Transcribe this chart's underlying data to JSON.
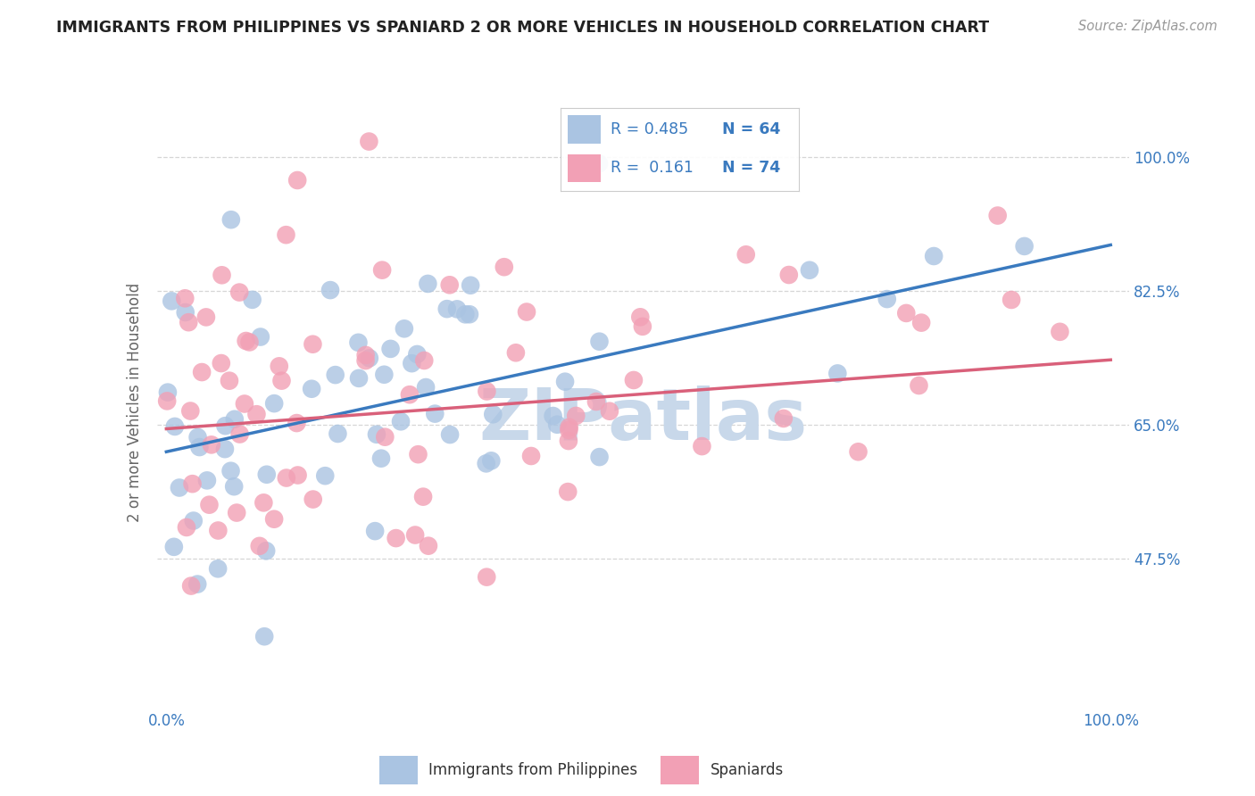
{
  "title": "IMMIGRANTS FROM PHILIPPINES VS SPANIARD 2 OR MORE VEHICLES IN HOUSEHOLD CORRELATION CHART",
  "source": "Source: ZipAtlas.com",
  "ylabel": "2 or more Vehicles in Household",
  "ytick_labels": [
    "100.0%",
    "82.5%",
    "65.0%",
    "47.5%"
  ],
  "ytick_values": [
    1.0,
    0.825,
    0.65,
    0.475
  ],
  "legend_label1": "Immigrants from Philippines",
  "legend_label2": "Spaniards",
  "R1": 0.485,
  "N1": 64,
  "R2": 0.161,
  "N2": 74,
  "color_blue": "#aac4e2",
  "color_pink": "#f2a0b5",
  "line_color_blue": "#3a7abf",
  "line_color_pink": "#d9607a",
  "text_color_blue": "#3a7abf",
  "watermark_color": "#c8d8ea",
  "title_color": "#222222",
  "source_color": "#999999",
  "ylabel_color": "#666666",
  "xtick_color": "#3a7abf",
  "ytick_color": "#3a7abf",
  "grid_color": "#cccccc",
  "ylim_min": 0.28,
  "ylim_max": 1.08,
  "xlim_min": -0.01,
  "xlim_max": 1.02,
  "blue_line_x0": 0.0,
  "blue_line_y0": 0.615,
  "blue_line_x1": 1.0,
  "blue_line_y1": 0.885,
  "pink_line_x0": 0.0,
  "pink_line_y0": 0.645,
  "pink_line_x1": 1.0,
  "pink_line_y1": 0.735
}
